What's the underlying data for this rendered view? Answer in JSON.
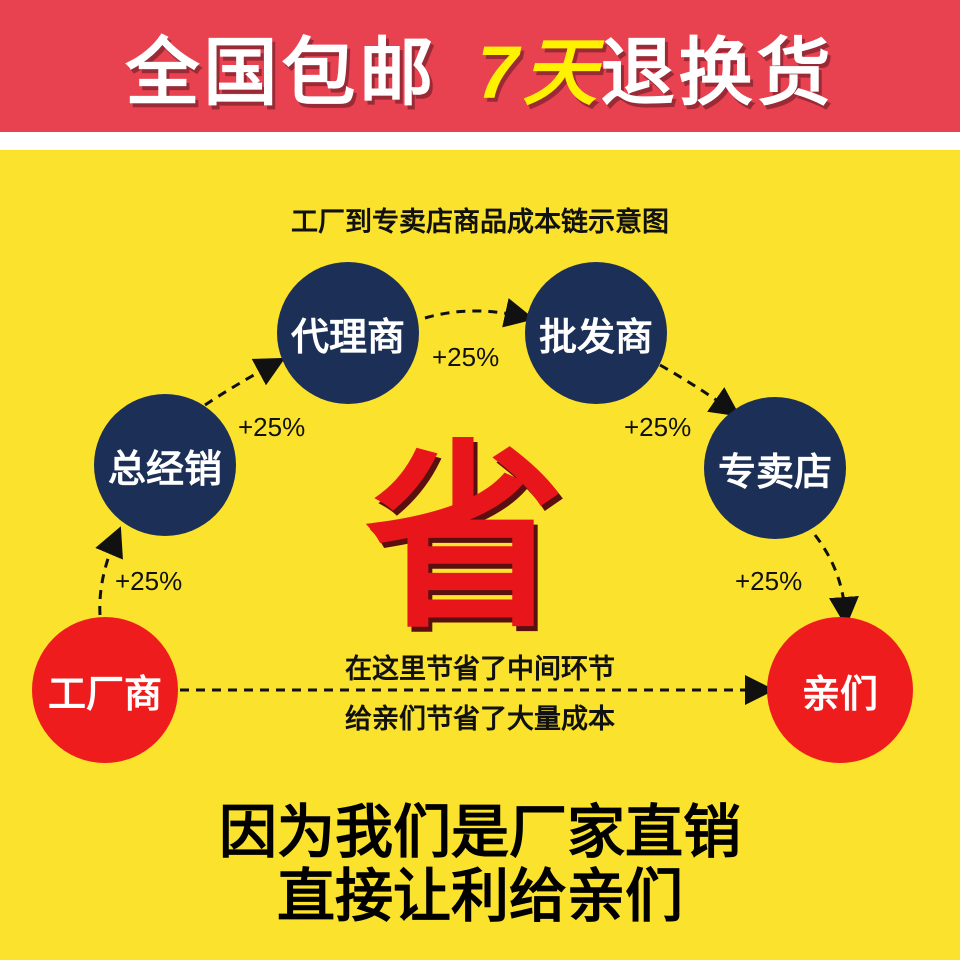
{
  "banner": {
    "part1": "全国包邮",
    "part2_num": "7天",
    "part2_rest": "退换货"
  },
  "title": "工厂到专卖店商品成本链示意图",
  "nodes": {
    "factory": "工厂商",
    "general": "总经销",
    "agent": "代理商",
    "wholesale": "批发商",
    "store": "专卖店",
    "customer": "亲们"
  },
  "markups": [
    "+25%",
    "+25%",
    "+25%",
    "+25%",
    "+25%"
  ],
  "center": {
    "char": "省",
    "line1": "在这里节省了中间环节",
    "line2": "给亲们节省了大量成本"
  },
  "bottom": {
    "line1": "因为我们是厂家直销",
    "line2": "直接让利给亲们"
  },
  "colors": {
    "banner": "#e8414f",
    "background": "#fbe22c",
    "node_navy": "#1c2f57",
    "node_red": "#ee1c1c",
    "highlight": "#fff200"
  }
}
